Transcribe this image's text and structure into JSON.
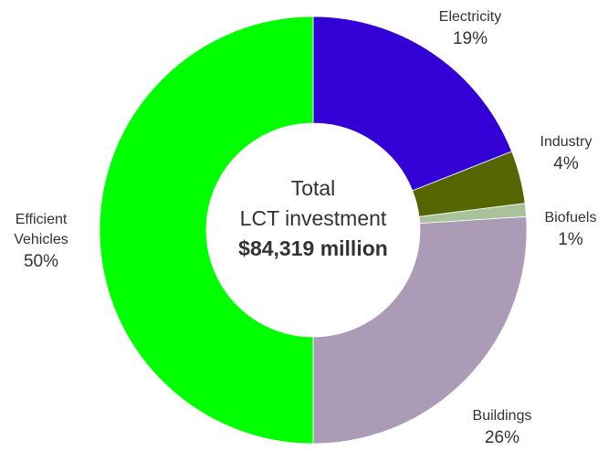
{
  "chart_data": {
    "type": "donut",
    "center_label": [
      "Total",
      "LCT investment",
      "$84,319 million"
    ],
    "categories": [
      "Electricity",
      "Industry",
      "Biofuels",
      "Buildings",
      "Efficient Vehicles"
    ],
    "values": [
      19,
      4,
      1,
      26,
      50
    ],
    "value_labels": [
      "19%",
      "4%",
      "1%",
      "26%",
      "50%"
    ],
    "colors": [
      "#3300d6",
      "#556600",
      "#a9c29a",
      "#ab9bb7",
      "#00ff00"
    ]
  }
}
